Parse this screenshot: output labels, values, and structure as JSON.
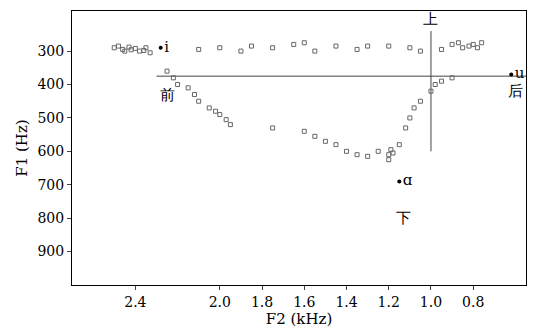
{
  "chart_data": {
    "type": "scatter",
    "x_label": "F2 (kHz)",
    "y_label": "F1 (Hz)",
    "xlim": [
      2.7,
      0.55
    ],
    "ylim": [
      1000,
      180
    ],
    "xticks": [
      2.4,
      {
        "value": 2,
        "label": "2.0"
      },
      1.8,
      1.6,
      1.4,
      1.2,
      {
        "value": 1,
        "label": "1.0"
      },
      0.8
    ],
    "yticks": [
      300,
      400,
      500,
      600,
      700,
      800,
      900
    ],
    "grid": false,
    "series": [
      {
        "type": "scatter",
        "marker": "square-open",
        "color": "#666666",
        "x": [
          2.5,
          2.48,
          2.46,
          2.45,
          2.43,
          2.42,
          2.4,
          2.38,
          2.36,
          2.35,
          2.33,
          2.1,
          2.0,
          1.9,
          1.85,
          1.75,
          1.65,
          1.6,
          1.55,
          1.45,
          1.35,
          1.3,
          1.2,
          1.1,
          1.05,
          0.95,
          0.9,
          0.87,
          0.85,
          0.82,
          0.8,
          0.78,
          0.76,
          2.25,
          2.22,
          2.2,
          2.15,
          2.12,
          2.1,
          2.05,
          2.02,
          2.0,
          1.97,
          1.95,
          1.75,
          1.6,
          1.55,
          1.5,
          1.45,
          1.4,
          1.35,
          1.3,
          1.25,
          1.2,
          1.2,
          1.18,
          1.19,
          1.15,
          1.12,
          1.1,
          1.08,
          1.05,
          1.0,
          0.98,
          0.95,
          0.9
        ],
        "values": [
          290,
          285,
          295,
          300,
          288,
          296,
          292,
          300,
          298,
          290,
          305,
          295,
          290,
          300,
          285,
          290,
          280,
          275,
          300,
          285,
          295,
          285,
          285,
          290,
          300,
          295,
          280,
          275,
          290,
          285,
          280,
          290,
          275,
          360,
          380,
          400,
          410,
          430,
          450,
          470,
          480,
          490,
          505,
          520,
          530,
          540,
          555,
          570,
          580,
          600,
          610,
          615,
          600,
          610,
          625,
          605,
          595,
          580,
          530,
          500,
          470,
          450,
          420,
          400,
          390,
          380
        ]
      }
    ],
    "points": [
      {
        "label": "i",
        "x": 2.28,
        "y": 290
      },
      {
        "label": "u",
        "x": 0.62,
        "y": 370
      },
      {
        "label": "ɑ",
        "x": 1.15,
        "y": 690
      }
    ],
    "guides": [
      {
        "x": [
          2.3,
          0.55
        ],
        "y": [
          375,
          375
        ]
      },
      {
        "x": [
          1.0,
          1.0
        ],
        "y": [
          240,
          600
        ]
      }
    ],
    "annotations": [
      {
        "text": "上",
        "x": 1.0,
        "y": 205
      },
      {
        "text": "下",
        "x": 1.13,
        "y": 800
      },
      {
        "text": "前",
        "x": 2.25,
        "y": 430
      },
      {
        "text": "后",
        "x": 0.6,
        "y": 420
      }
    ]
  }
}
